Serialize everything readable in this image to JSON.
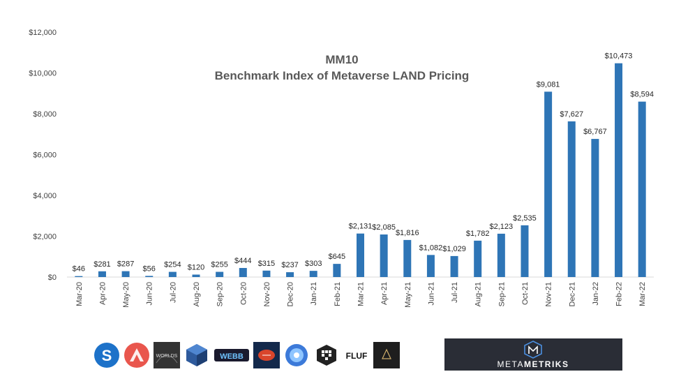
{
  "chart_data": {
    "type": "bar",
    "title": "MM10",
    "subtitle": "Benchmark Index of Metaverse LAND Pricing",
    "xlabel": "",
    "ylabel": "",
    "ylim": [
      0,
      12000
    ],
    "yticks": [
      0,
      2000,
      4000,
      6000,
      8000,
      10000,
      12000
    ],
    "ytick_labels": [
      "$0",
      "$2,000",
      "$4,000",
      "$6,000",
      "$8,000",
      "$10,000",
      "$12,000"
    ],
    "grid": false,
    "legend": "none",
    "bar_color": "#2e75b6",
    "categories": [
      "Mar-20",
      "Apr-20",
      "May-20",
      "Jun-20",
      "Jul-20",
      "Aug-20",
      "Sep-20",
      "Oct-20",
      "Nov-20",
      "Dec-20",
      "Jan-21",
      "Feb-21",
      "Mar-21",
      "Apr-21",
      "May-21",
      "Jun-21",
      "Jul-21",
      "Aug-21",
      "Sep-21",
      "Oct-21",
      "Nov-21",
      "Dec-21",
      "Jan-22",
      "Feb-22",
      "Mar-22"
    ],
    "values": [
      46,
      281,
      287,
      56,
      254,
      120,
      255,
      444,
      315,
      237,
      303,
      645,
      2131,
      2085,
      1816,
      1082,
      1029,
      1782,
      2123,
      2535,
      9081,
      7627,
      6767,
      10473,
      8594
    ],
    "data_labels": [
      "$46",
      "$281",
      "$287",
      "$56",
      "$254",
      "$120",
      "$255",
      "$444",
      "$315",
      "$237",
      "$303",
      "$645",
      "$2,131",
      "$2,085",
      "$1,816",
      "$1,082",
      "$1,029",
      "$1,782",
      "$2,123",
      "$2,535",
      "$9,081",
      "$7,627",
      "$6,767",
      "$10,473",
      "$8,594"
    ]
  },
  "logos": {
    "partners": [
      "sandbox-logo-icon",
      "somnium-logo-icon",
      "netvrk-worlds-logo-icon",
      "cryptovoxels-logo-icon",
      "worldwide-webb-logo-icon",
      "football-logo-icon",
      "decentraland-logo-icon",
      "cube-logo-icon",
      "fluf-logo-icon",
      "dark-logo-icon"
    ],
    "worlds_text": "WORLDS",
    "fluf_text": "FLUF",
    "webb_text": "WEBB"
  },
  "brand": {
    "name": "METAMETRIKS",
    "name_light": "META",
    "name_bold": "METRIKS"
  }
}
